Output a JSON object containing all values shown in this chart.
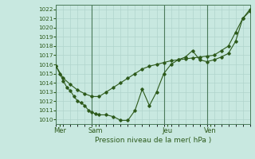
{
  "xlabel": "Pression niveau de la mer( hPa )",
  "ylim": [
    1009.5,
    1022.5
  ],
  "xlim": [
    0,
    27
  ],
  "yticks": [
    1010,
    1011,
    1012,
    1013,
    1014,
    1015,
    1016,
    1017,
    1018,
    1019,
    1020,
    1021,
    1022
  ],
  "day_labels": [
    "Mer",
    "Sam",
    "Jeu",
    "Ven"
  ],
  "day_positions": [
    0.5,
    5.5,
    15.5,
    21.5
  ],
  "day_vlines": [
    0,
    5,
    15,
    21
  ],
  "bg_color": "#c8e8e0",
  "line_color": "#2d5a1b",
  "grid_color": "#b0d4cc",
  "line1_x": [
    0,
    0.5,
    1,
    1.5,
    2,
    2.5,
    3,
    3.5,
    4,
    4.5,
    5,
    5.5,
    6,
    7,
    8,
    9,
    10,
    11,
    12,
    13,
    14,
    15,
    16,
    17,
    18,
    19,
    20,
    21,
    22,
    23,
    24,
    25,
    26,
    27
  ],
  "line1_y": [
    1015.8,
    1015.0,
    1014.2,
    1013.5,
    1013.1,
    1012.5,
    1012.0,
    1011.8,
    1011.5,
    1011.0,
    1010.8,
    1010.6,
    1010.5,
    1010.5,
    1010.3,
    1009.9,
    1009.9,
    1011.0,
    1013.3,
    1011.5,
    1013.0,
    1015.0,
    1016.0,
    1016.5,
    1016.8,
    1017.5,
    1016.5,
    1016.3,
    1016.5,
    1016.8,
    1017.2,
    1018.5,
    1021.0,
    1021.8
  ],
  "line2_x": [
    0,
    1,
    2,
    3,
    4,
    5,
    6,
    7,
    8,
    9,
    10,
    11,
    12,
    13,
    14,
    15,
    16,
    17,
    18,
    19,
    20,
    21,
    22,
    23,
    24,
    25,
    26,
    27
  ],
  "line2_y": [
    1015.8,
    1014.5,
    1013.8,
    1013.2,
    1012.8,
    1012.5,
    1012.5,
    1013.0,
    1013.5,
    1014.0,
    1014.5,
    1015.0,
    1015.5,
    1015.8,
    1016.0,
    1016.2,
    1016.4,
    1016.5,
    1016.6,
    1016.7,
    1016.8,
    1016.9,
    1017.0,
    1017.5,
    1018.0,
    1019.5,
    1021.0,
    1022.0
  ]
}
